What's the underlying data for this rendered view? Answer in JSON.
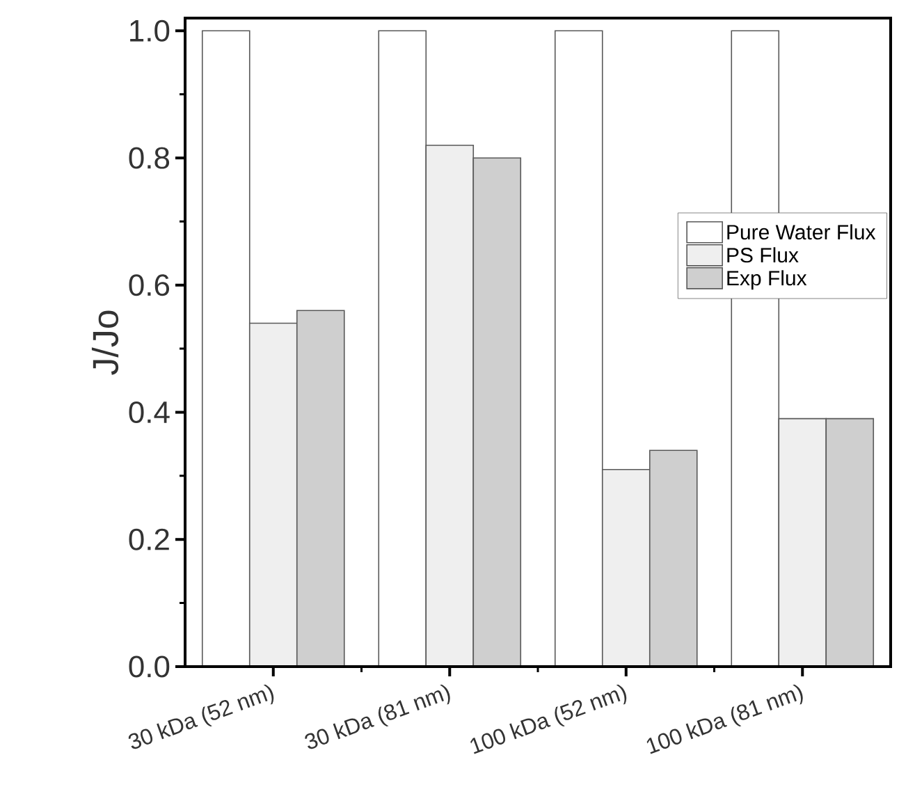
{
  "chart_data": {
    "type": "bar",
    "ylabel": "J/Jo",
    "categories": [
      "30 kDa (52 nm)",
      "30 kDa (81 nm)",
      "100 kDa (52 nm)",
      "100 kDa (81 nm)"
    ],
    "series": [
      {
        "name": "Pure Water Flux",
        "color": "#ffffff",
        "values": [
          1.0,
          1.0,
          1.0,
          1.0
        ]
      },
      {
        "name": "PS Flux",
        "color": "#efefef",
        "values": [
          0.54,
          0.82,
          0.31,
          0.39
        ]
      },
      {
        "name": "Exp Flux",
        "color": "#cfcfcf",
        "values": [
          0.56,
          0.8,
          0.34,
          0.39
        ]
      }
    ],
    "ylim": [
      0,
      1.02
    ],
    "yticks": [
      {
        "value": 0,
        "label": "0.0"
      },
      {
        "value": 0.2,
        "label": "0.2"
      },
      {
        "value": 0.4,
        "label": "0.4"
      },
      {
        "value": 0.6,
        "label": "0.6"
      },
      {
        "value": 0.8,
        "label": "0.8"
      },
      {
        "value": 1.0,
        "label": "1.0"
      }
    ],
    "grid": false,
    "legend": "right"
  }
}
